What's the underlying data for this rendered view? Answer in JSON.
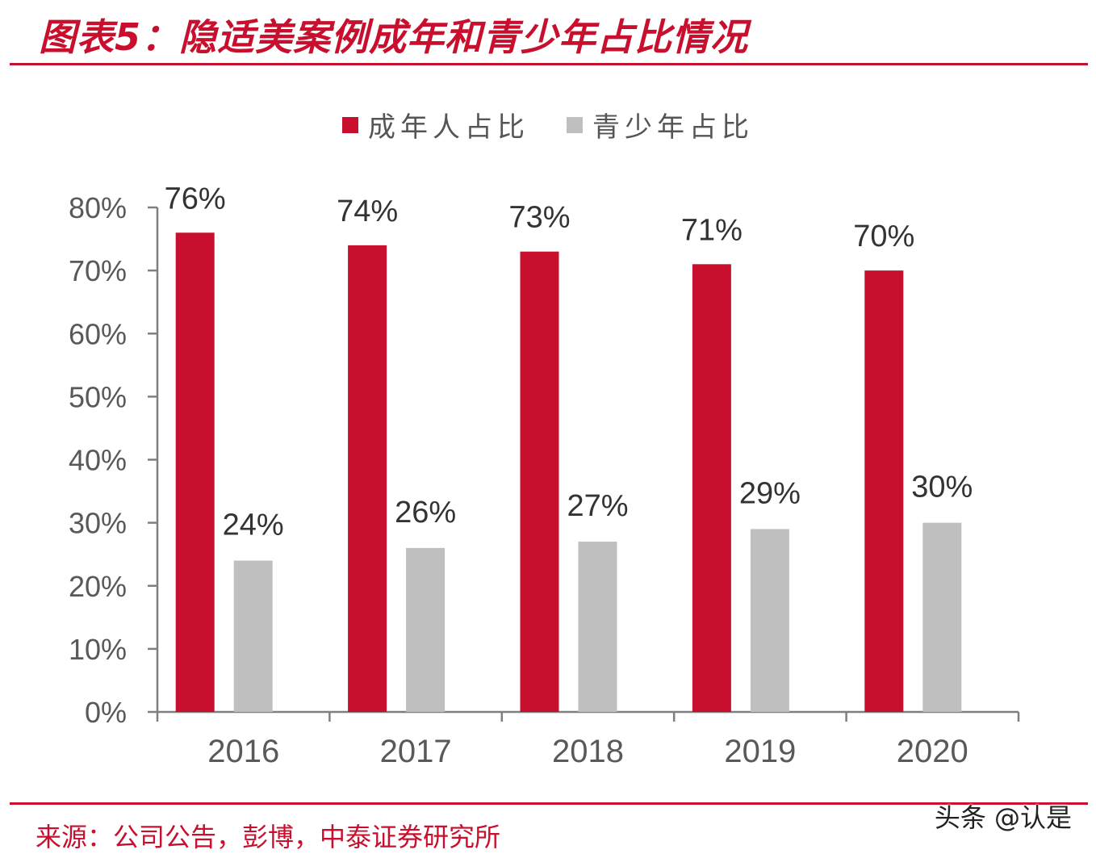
{
  "figure": {
    "title": "图表5：隐适美案例成年和青少年占比情况",
    "source": "来源：公司公告，彭博，中泰证券研究所",
    "watermark": "头条 @认是",
    "accent_color": "#c8102e"
  },
  "chart_data": {
    "type": "bar",
    "categories": [
      "2016",
      "2017",
      "2018",
      "2019",
      "2020"
    ],
    "series": [
      {
        "name": "成年人占比",
        "values": [
          76,
          74,
          73,
          71,
          70
        ],
        "labels": [
          "76%",
          "74%",
          "73%",
          "71%",
          "70%"
        ],
        "color": "#c8102e"
      },
      {
        "name": "青少年占比",
        "values": [
          24,
          26,
          27,
          29,
          30
        ],
        "labels": [
          "24%",
          "26%",
          "27%",
          "29%",
          "30%"
        ],
        "color": "#bfbfbf"
      }
    ],
    "ylim": [
      0,
      80
    ],
    "yticks": [
      0,
      10,
      20,
      30,
      40,
      50,
      60,
      70,
      80
    ],
    "ytick_labels": [
      "0%",
      "10%",
      "20%",
      "30%",
      "40%",
      "50%",
      "60%",
      "70%",
      "80%"
    ],
    "grid": false,
    "legend": "top-center"
  }
}
